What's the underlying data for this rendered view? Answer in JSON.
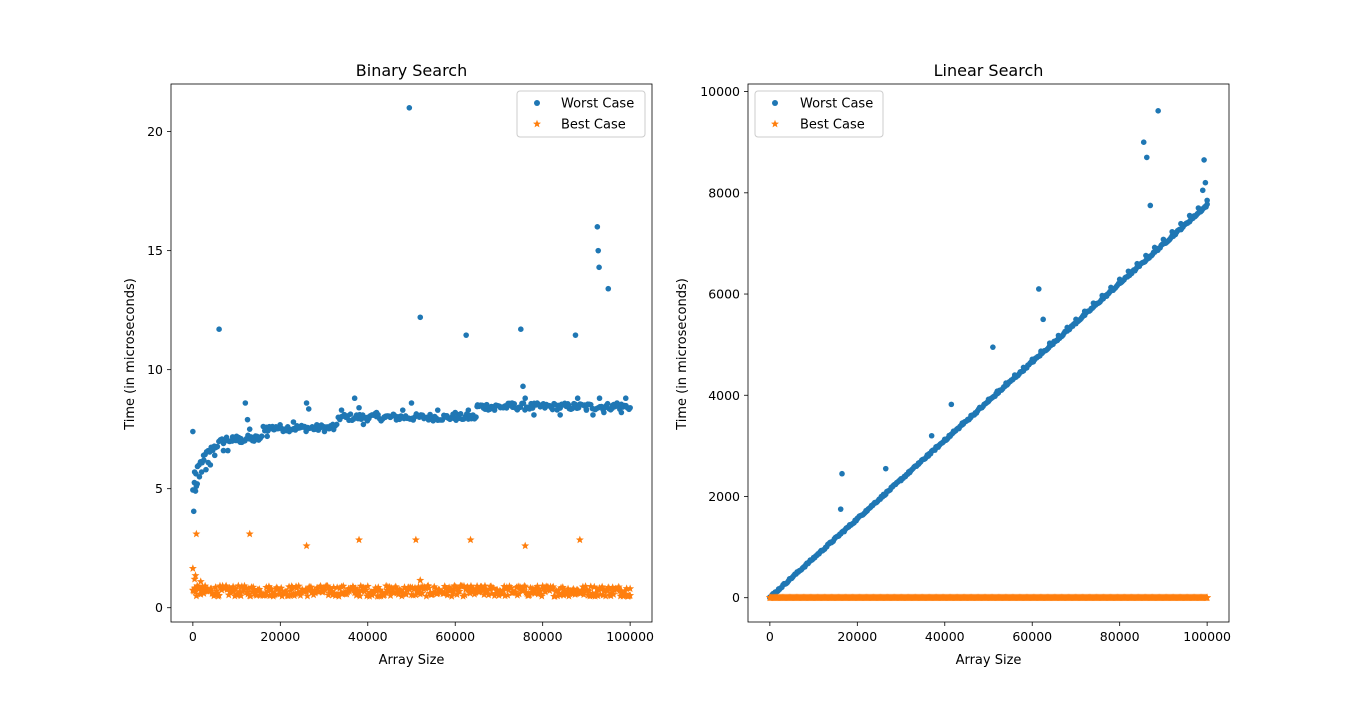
{
  "chart_data": [
    {
      "type": "scatter",
      "title": "Binary Search",
      "xlabel": "Array Size",
      "ylabel": "Time (in microseconds)",
      "xlim": [
        -5000,
        105000
      ],
      "ylim": [
        -0.6,
        22
      ],
      "xticks": [
        0,
        20000,
        40000,
        60000,
        80000,
        100000
      ],
      "yticks": [
        0,
        5,
        10,
        15,
        20
      ],
      "grid": false,
      "legend": "top-right",
      "series": [
        {
          "name": "Worst Case",
          "marker": "dot",
          "color": "#1f77b4",
          "points": [
            [
              0,
              7.4
            ],
            [
              200,
              4.05
            ],
            [
              400,
              5.7
            ],
            [
              600,
              4.9
            ],
            [
              800,
              5.1
            ],
            [
              1000,
              5.2
            ],
            [
              1500,
              5.5
            ],
            [
              2000,
              5.7
            ],
            [
              2500,
              6.2
            ],
            [
              3000,
              5.8
            ],
            [
              3500,
              6.1
            ],
            [
              4000,
              6.0
            ],
            [
              5000,
              6.4
            ],
            [
              6000,
              11.7
            ],
            [
              7000,
              6.6
            ],
            [
              8000,
              6.6
            ],
            [
              9000,
              7.0
            ],
            [
              10000,
              7.2
            ],
            [
              11000,
              7.1
            ],
            [
              12000,
              8.6
            ],
            [
              12500,
              7.9
            ],
            [
              13000,
              7.5
            ],
            [
              14000,
              7.0
            ],
            [
              15000,
              7.1
            ],
            [
              17000,
              7.2
            ],
            [
              19000,
              7.6
            ],
            [
              21000,
              7.5
            ],
            [
              23000,
              7.8
            ],
            [
              24000,
              7.6
            ],
            [
              26000,
              8.6
            ],
            [
              26500,
              8.35
            ],
            [
              28000,
              7.5
            ],
            [
              30000,
              7.6
            ],
            [
              32000,
              7.7
            ],
            [
              34000,
              8.3
            ],
            [
              35000,
              8.0
            ],
            [
              37000,
              8.8
            ],
            [
              38000,
              8.4
            ],
            [
              39000,
              7.7
            ],
            [
              40000,
              8.0
            ],
            [
              42000,
              8.2
            ],
            [
              44000,
              8.0
            ],
            [
              46000,
              8.1
            ],
            [
              48000,
              8.3
            ],
            [
              49500,
              21.0
            ],
            [
              50000,
              8.6
            ],
            [
              52000,
              12.2
            ],
            [
              54000,
              8.0
            ],
            [
              56000,
              8.3
            ],
            [
              58000,
              8.0
            ],
            [
              60000,
              8.2
            ],
            [
              62500,
              11.45
            ],
            [
              63000,
              8.3
            ],
            [
              65000,
              8.45
            ],
            [
              67000,
              8.5
            ],
            [
              69000,
              8.3
            ],
            [
              71000,
              8.4
            ],
            [
              73000,
              8.6
            ],
            [
              75000,
              11.7
            ],
            [
              75500,
              9.3
            ],
            [
              76000,
              8.8
            ],
            [
              78000,
              8.1
            ],
            [
              80000,
              8.5
            ],
            [
              82000,
              8.4
            ],
            [
              84000,
              8.1
            ],
            [
              86000,
              8.5
            ],
            [
              87500,
              11.45
            ],
            [
              88000,
              8.8
            ],
            [
              90000,
              8.3
            ],
            [
              91500,
              8.1
            ],
            [
              92500,
              16.0
            ],
            [
              92700,
              15.0
            ],
            [
              92900,
              14.3
            ],
            [
              93000,
              8.8
            ],
            [
              94000,
              8.2
            ],
            [
              95000,
              13.4
            ],
            [
              96000,
              8.5
            ],
            [
              97000,
              8.6
            ],
            [
              98000,
              8.2
            ],
            [
              99000,
              8.8
            ],
            [
              100000,
              8.4
            ]
          ]
        },
        {
          "name": "Best Case",
          "marker": "star",
          "color": "#ff7f0e",
          "points": [
            [
              0,
              1.65
            ],
            [
              200,
              0.7
            ],
            [
              400,
              1.2
            ],
            [
              600,
              1.35
            ],
            [
              800,
              3.1
            ],
            [
              1200,
              0.8
            ],
            [
              1800,
              1.1
            ],
            [
              2500,
              0.6
            ],
            [
              3500,
              0.7
            ],
            [
              13000,
              3.1
            ],
            [
              26000,
              2.6
            ],
            [
              38000,
              2.85
            ],
            [
              51000,
              2.85
            ],
            [
              52000,
              1.15
            ],
            [
              63500,
              2.85
            ],
            [
              76000,
              2.6
            ],
            [
              88500,
              2.85
            ],
            [
              100000,
              0.8
            ]
          ]
        }
      ]
    },
    {
      "type": "scatter",
      "title": "Linear Search",
      "xlabel": "Array Size",
      "ylabel": "Time (in microseconds)",
      "xlim": [
        -5000,
        105000
      ],
      "ylim": [
        -480,
        10150
      ],
      "xticks": [
        0,
        20000,
        40000,
        60000,
        80000,
        100000
      ],
      "yticks": [
        0,
        2000,
        4000,
        6000,
        8000,
        10000
      ],
      "grid": false,
      "legend": "top-left",
      "series": [
        {
          "name": "Worst Case",
          "marker": "dot",
          "color": "#1f77b4",
          "points": [
            [
              0,
              0
            ],
            [
              2000,
              150
            ],
            [
              5000,
              390
            ],
            [
              8000,
              620
            ],
            [
              10000,
              780
            ],
            [
              12000,
              930
            ],
            [
              14000,
              1100
            ],
            [
              16000,
              1250
            ],
            [
              16500,
              2450
            ],
            [
              16200,
              1750
            ],
            [
              18000,
              1400
            ],
            [
              20000,
              1560
            ],
            [
              22000,
              1720
            ],
            [
              24000,
              1880
            ],
            [
              26000,
              2040
            ],
            [
              26500,
              2550
            ],
            [
              28000,
              2190
            ],
            [
              30000,
              2350
            ],
            [
              32000,
              2500
            ],
            [
              34000,
              2660
            ],
            [
              36000,
              2820
            ],
            [
              37000,
              3200
            ],
            [
              38000,
              2980
            ],
            [
              40000,
              3130
            ],
            [
              41500,
              3820
            ],
            [
              42000,
              3290
            ],
            [
              44000,
              3450
            ],
            [
              46000,
              3600
            ],
            [
              48000,
              3760
            ],
            [
              50000,
              3920
            ],
            [
              51000,
              4950
            ],
            [
              52000,
              4080
            ],
            [
              54000,
              4240
            ],
            [
              56000,
              4400
            ],
            [
              58000,
              4550
            ],
            [
              60000,
              4710
            ],
            [
              61500,
              6100
            ],
            [
              62000,
              4870
            ],
            [
              62500,
              5500
            ],
            [
              64000,
              5030
            ],
            [
              66000,
              5180
            ],
            [
              68000,
              5340
            ],
            [
              70000,
              5500
            ],
            [
              72000,
              5660
            ],
            [
              74000,
              5820
            ],
            [
              76000,
              5970
            ],
            [
              78000,
              6130
            ],
            [
              80000,
              6290
            ],
            [
              82000,
              6450
            ],
            [
              84000,
              6600
            ],
            [
              85500,
              9000
            ],
            [
              86200,
              8700
            ],
            [
              86000,
              6760
            ],
            [
              87000,
              7750
            ],
            [
              88000,
              6920
            ],
            [
              88800,
              9620
            ],
            [
              90000,
              7080
            ],
            [
              92000,
              7230
            ],
            [
              94000,
              7390
            ],
            [
              96000,
              7550
            ],
            [
              98000,
              7700
            ],
            [
              99000,
              8050
            ],
            [
              99300,
              8650
            ],
            [
              99600,
              8200
            ],
            [
              100000,
              7850
            ]
          ]
        },
        {
          "name": "Best Case",
          "marker": "star",
          "color": "#ff7f0e",
          "points": [
            [
              0,
              0
            ],
            [
              100000,
              0
            ]
          ]
        }
      ]
    }
  ]
}
